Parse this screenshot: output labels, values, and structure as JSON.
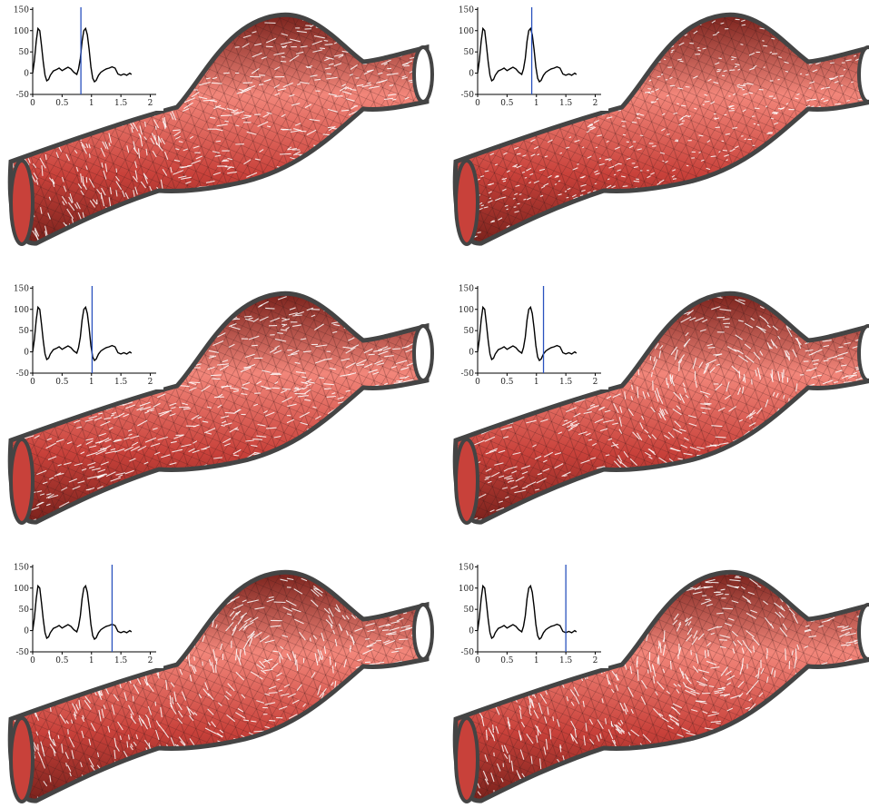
{
  "colors": {
    "vessel_base": "#c8413a",
    "vessel_light": "#f2867a",
    "vessel_dark": "#7a221c",
    "vessel_wall": "#444444",
    "mesh_line": "#3a1a18",
    "vector_line": "#ffffff",
    "waveform_line": "#000000",
    "time_marker": "#2a52be"
  },
  "panels": [
    {
      "time_marker_x": 0.82,
      "flow_state": "early-systole"
    },
    {
      "time_marker_x": 0.92,
      "flow_state": "peak-systole"
    },
    {
      "time_marker_x": 1.01,
      "flow_state": "late-systole"
    },
    {
      "time_marker_x": 1.12,
      "flow_state": "early-diastole"
    },
    {
      "time_marker_x": 1.35,
      "flow_state": "mid-diastole"
    },
    {
      "time_marker_x": 1.5,
      "flow_state": "late-diastole"
    }
  ],
  "chart_data": {
    "type": "line",
    "title": "",
    "xlabel": "",
    "ylabel": "",
    "xlim": [
      0,
      2.1
    ],
    "ylim": [
      -50,
      155
    ],
    "x_ticks": [
      "0",
      "0.5",
      "1",
      "1.5",
      "2"
    ],
    "y_ticks": [
      "150",
      "100",
      "50",
      "0",
      "-50"
    ],
    "grid": false,
    "series": [
      {
        "x": [
          0.0,
          0.03,
          0.06,
          0.09,
          0.12,
          0.15,
          0.18,
          0.21,
          0.24,
          0.27,
          0.3,
          0.35,
          0.4,
          0.45,
          0.5,
          0.55,
          0.6,
          0.65,
          0.7,
          0.75,
          0.78,
          0.81,
          0.84,
          0.87,
          0.9,
          0.93,
          0.96,
          0.99,
          1.02,
          1.05,
          1.08,
          1.12,
          1.16,
          1.2,
          1.25,
          1.3,
          1.35,
          1.4,
          1.45,
          1.5,
          1.55,
          1.6,
          1.65,
          1.68
        ],
        "y": [
          0,
          30,
          75,
          105,
          100,
          65,
          25,
          -5,
          -18,
          -15,
          -5,
          5,
          8,
          12,
          6,
          10,
          14,
          10,
          2,
          -3,
          10,
          35,
          75,
          100,
          105,
          90,
          55,
          15,
          -12,
          -20,
          -17,
          -5,
          2,
          6,
          10,
          12,
          15,
          12,
          -2,
          -5,
          -2,
          -5,
          0,
          -3
        ]
      }
    ]
  }
}
